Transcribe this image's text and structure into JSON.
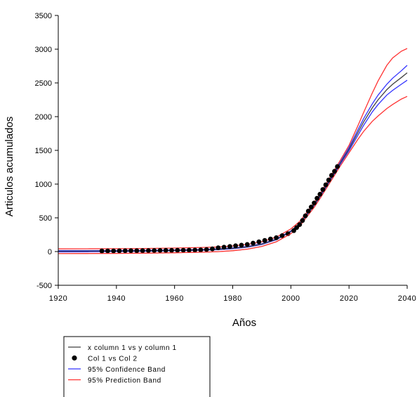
{
  "chart_data": {
    "type": "scatter",
    "xlabel": "Años",
    "ylabel": "Articulos acumulados",
    "xlim": [
      1920,
      2040
    ],
    "ylim": [
      -500,
      3500
    ],
    "xticks": [
      1920,
      1940,
      1960,
      1980,
      2000,
      2020,
      2040
    ],
    "yticks": [
      -500,
      0,
      500,
      1000,
      1500,
      2000,
      2500,
      3000,
      3500
    ],
    "grid": false,
    "legend_position": "bottom-left",
    "series": [
      {
        "name": "x column 1 vs y column 1",
        "kind": "line",
        "color": "#404040",
        "x": [
          1920,
          1930,
          1940,
          1950,
          1960,
          1970,
          1975,
          1980,
          1985,
          1990,
          1995,
          2000,
          2003,
          2005,
          2008,
          2010,
          2013,
          2015,
          2017,
          2020,
          2023,
          2025,
          2028,
          2030,
          2033,
          2035,
          2038,
          2040
        ],
        "y": [
          5,
          6,
          8,
          11,
          17,
          26,
          34,
          48,
          70,
          110,
          180,
          300,
          410,
          520,
          690,
          820,
          1030,
          1170,
          1310,
          1520,
          1760,
          1920,
          2130,
          2250,
          2400,
          2480,
          2580,
          2650
        ]
      },
      {
        "name": "Col 1 vs Col 2",
        "kind": "scatter",
        "color": "#000000",
        "x": [
          1935,
          1937,
          1939,
          1941,
          1943,
          1945,
          1947,
          1949,
          1951,
          1953,
          1955,
          1957,
          1959,
          1961,
          1963,
          1965,
          1967,
          1969,
          1971,
          1973,
          1975,
          1977,
          1979,
          1981,
          1983,
          1985,
          1987,
          1989,
          1991,
          1993,
          1995,
          1997,
          1999,
          2001,
          2002,
          2003,
          2004,
          2005,
          2006,
          2007,
          2008,
          2009,
          2010,
          2011,
          2012,
          2013,
          2014,
          2015,
          2016
        ],
        "y": [
          8,
          9,
          9,
          10,
          11,
          12,
          13,
          14,
          15,
          16,
          17,
          18,
          18,
          19,
          20,
          21,
          22,
          24,
          30,
          40,
          55,
          65,
          75,
          85,
          95,
          105,
          125,
          145,
          165,
          185,
          205,
          235,
          265,
          310,
          355,
          400,
          460,
          530,
          600,
          660,
          720,
          790,
          850,
          920,
          990,
          1060,
          1130,
          1190,
          1260
        ]
      },
      {
        "name": "95% Confidence Band",
        "kind": "band",
        "color": "#3333ff",
        "x": [
          1920,
          1930,
          1940,
          1950,
          1960,
          1970,
          1975,
          1980,
          1985,
          1990,
          1995,
          2000,
          2003,
          2005,
          2008,
          2010,
          2013,
          2015,
          2017,
          2020,
          2023,
          2025,
          2028,
          2030,
          2033,
          2035,
          2038,
          2040
        ],
        "upper": [
          15,
          15,
          16,
          18,
          23,
          32,
          40,
          54,
          76,
          116,
          186,
          306,
          416,
          528,
          698,
          830,
          1042,
          1184,
          1326,
          1545,
          1800,
          1970,
          2190,
          2320,
          2480,
          2570,
          2680,
          2760
        ],
        "lower": [
          -5,
          -3,
          0,
          4,
          11,
          20,
          28,
          42,
          64,
          104,
          174,
          294,
          404,
          512,
          682,
          810,
          1018,
          1156,
          1294,
          1495,
          1720,
          1870,
          2070,
          2180,
          2320,
          2390,
          2480,
          2540
        ]
      },
      {
        "name": "95% Prediction Band",
        "kind": "band",
        "color": "#ff3333",
        "x": [
          1920,
          1930,
          1940,
          1950,
          1960,
          1970,
          1975,
          1980,
          1985,
          1990,
          1995,
          2000,
          2003,
          2005,
          2008,
          2010,
          2013,
          2015,
          2017,
          2020,
          2023,
          2025,
          2028,
          2030,
          2033,
          2035,
          2038,
          2040
        ],
        "upper": [
          40,
          41,
          43,
          46,
          52,
          61,
          69,
          83,
          105,
          145,
          215,
          335,
          445,
          555,
          725,
          856,
          1068,
          1210,
          1352,
          1575,
          1860,
          2060,
          2350,
          2530,
          2760,
          2870,
          2970,
          3010
        ],
        "lower": [
          -30,
          -29,
          -27,
          -24,
          -18,
          -9,
          -1,
          13,
          35,
          75,
          145,
          265,
          375,
          485,
          655,
          784,
          992,
          1130,
          1268,
          1465,
          1660,
          1780,
          1930,
          2010,
          2120,
          2180,
          2260,
          2300
        ]
      }
    ]
  }
}
